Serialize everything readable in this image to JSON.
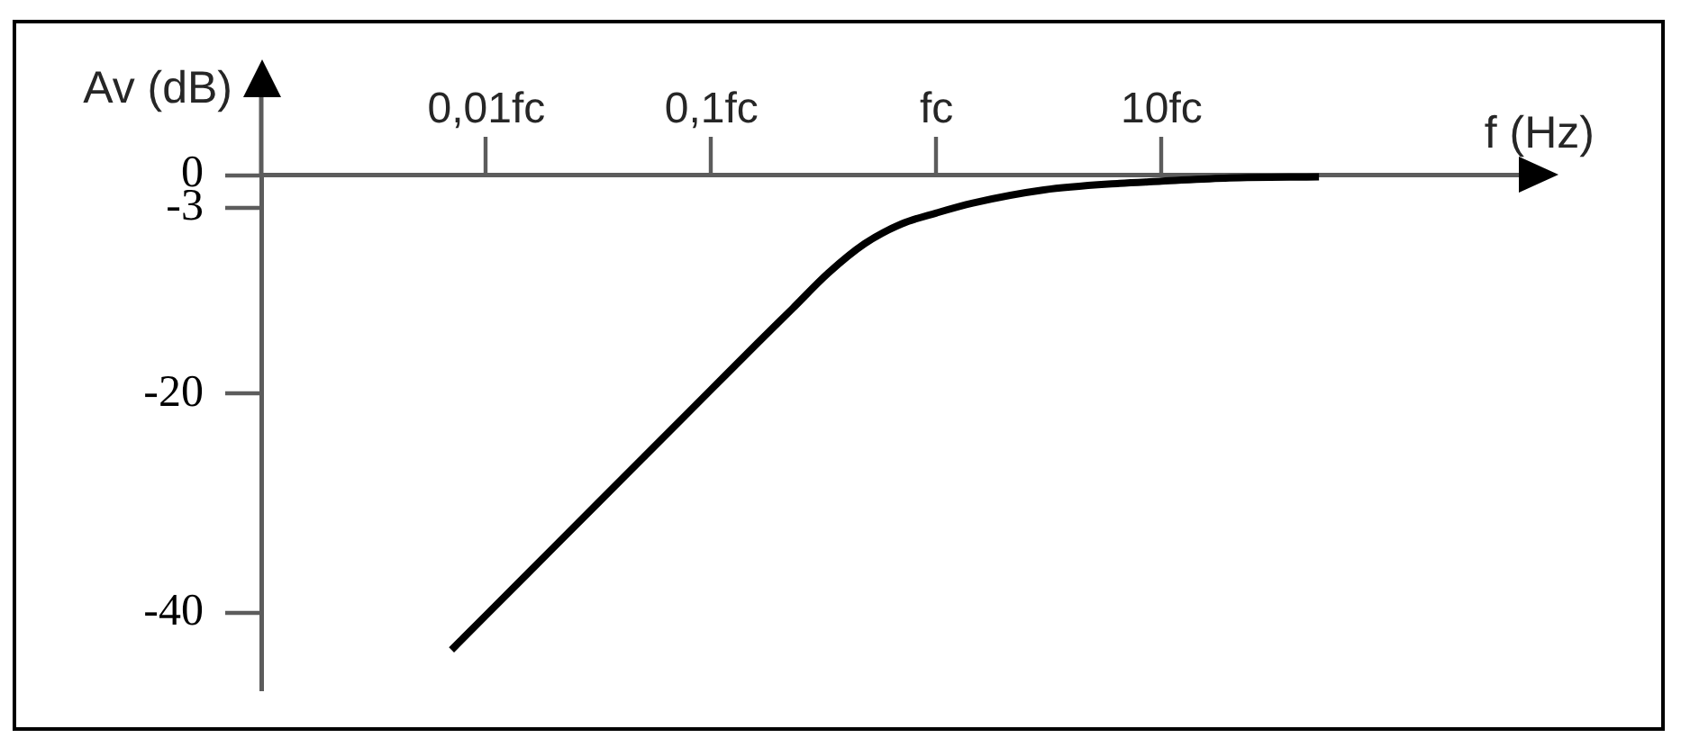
{
  "chart_data": {
    "type": "line",
    "xlabel": "f (Hz)",
    "ylabel": "Av (dB)",
    "log": "x",
    "x": [
      0.007,
      0.01,
      0.02,
      0.05,
      0.1,
      0.16,
      0.23,
      0.33,
      0.48,
      0.7,
      1,
      1.45,
      3,
      6.5,
      10,
      20,
      50
    ],
    "series": [
      {
        "color": "#000000",
        "values": [
          -43.4,
          -40.2,
          -34,
          -25.8,
          -19.6,
          -15.4,
          -12.2,
          -9,
          -6.3,
          -4.5,
          -3.5,
          -2.6,
          -1.4,
          -0.8,
          -0.6,
          -0.3,
          -0.2
        ]
      }
    ],
    "xlim": [
      0.001,
      500
    ],
    "ylim": [
      -47,
      0
    ],
    "xticks": [
      {
        "value": 0.01,
        "label": "0,01fc"
      },
      {
        "value": 0.1,
        "label": "0,1fc"
      },
      {
        "value": 1,
        "label": "fc"
      },
      {
        "value": 10,
        "label": "10fc"
      }
    ],
    "yticks": [
      -40,
      -20,
      -3,
      0
    ],
    "grid": false,
    "legend": false,
    "marker": "none",
    "line_style": "solid"
  }
}
